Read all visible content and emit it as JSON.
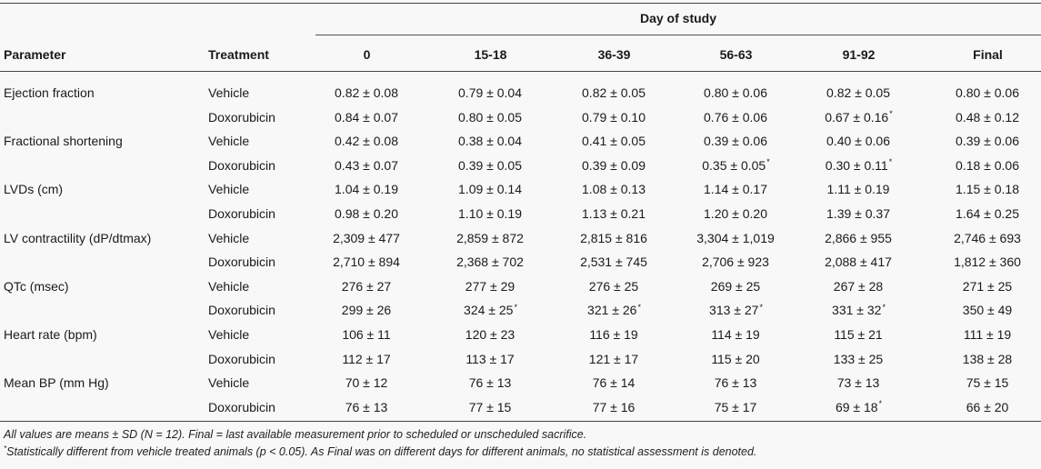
{
  "table": {
    "span_header": "Day of study",
    "col_headers": [
      "Parameter",
      "Treatment",
      "0",
      "15-18",
      "36-39",
      "56-63",
      "91-92",
      "Final"
    ],
    "rows": [
      {
        "parameter": "Ejection fraction",
        "treatment": "Vehicle",
        "values": [
          "0.82 ± 0.08",
          "0.79 ± 0.04",
          "0.82 ± 0.05",
          "0.80 ± 0.06",
          "0.82 ± 0.05",
          "0.80 ± 0.06"
        ],
        "stars": [
          "",
          "",
          "",
          "",
          "",
          ""
        ]
      },
      {
        "parameter": "",
        "treatment": "Doxorubicin",
        "values": [
          "0.84 ± 0.07",
          "0.80 ± 0.05",
          "0.79 ± 0.10",
          "0.76 ± 0.06",
          "0.67 ± 0.16",
          "0.48 ± 0.12"
        ],
        "stars": [
          "",
          "",
          "",
          "",
          "*",
          ""
        ]
      },
      {
        "parameter": "Fractional shortening",
        "treatment": "Vehicle",
        "values": [
          "0.42 ± 0.08",
          "0.38 ± 0.04",
          "0.41 ± 0.05",
          "0.39 ± 0.06",
          "0.40 ± 0.06",
          "0.39 ± 0.06"
        ],
        "stars": [
          "",
          "",
          "",
          "",
          "",
          ""
        ]
      },
      {
        "parameter": "",
        "treatment": "Doxorubicin",
        "values": [
          "0.43 ± 0.07",
          "0.39 ± 0.05",
          "0.39 ± 0.09",
          "0.35 ± 0.05",
          "0.30 ± 0.11",
          "0.18 ± 0.06"
        ],
        "stars": [
          "",
          "",
          "",
          "*",
          "*",
          ""
        ]
      },
      {
        "parameter": "LVDs (cm)",
        "treatment": "Vehicle",
        "values": [
          "1.04 ± 0.19",
          "1.09 ± 0.14",
          "1.08 ± 0.13",
          "1.14 ± 0.17",
          "1.11 ± 0.19",
          "1.15 ± 0.18"
        ],
        "stars": [
          "",
          "",
          "",
          "",
          "",
          ""
        ]
      },
      {
        "parameter": "",
        "treatment": "Doxorubicin",
        "values": [
          "0.98 ± 0.20",
          "1.10 ± 0.19",
          "1.13 ± 0.21",
          "1.20 ± 0.20",
          "1.39 ± 0.37",
          "1.64 ± 0.25"
        ],
        "stars": [
          "",
          "",
          "",
          "",
          "",
          ""
        ]
      },
      {
        "parameter": "LV contractility (dP/dtmax)",
        "treatment": "Vehicle",
        "values": [
          "2,309 ± 477",
          "2,859 ± 872",
          "2,815 ± 816",
          "3,304 ± 1,019",
          "2,866 ± 955",
          "2,746 ± 693"
        ],
        "stars": [
          "",
          "",
          "",
          "",
          "",
          ""
        ]
      },
      {
        "parameter": "",
        "treatment": "Doxorubicin",
        "values": [
          "2,710 ± 894",
          "2,368 ± 702",
          "2,531 ± 745",
          "2,706 ± 923",
          "2,088 ± 417",
          "1,812 ± 360"
        ],
        "stars": [
          "",
          "",
          "",
          "",
          "",
          ""
        ]
      },
      {
        "parameter": "QTc (msec)",
        "treatment": "Vehicle",
        "values": [
          "276 ± 27",
          "277 ± 29",
          "276 ± 25",
          "269 ± 25",
          "267 ± 28",
          "271 ± 25"
        ],
        "stars": [
          "",
          "",
          "",
          "",
          "",
          ""
        ]
      },
      {
        "parameter": "",
        "treatment": "Doxorubicin",
        "values": [
          "299 ± 26",
          "324 ± 25",
          "321 ± 26",
          "313 ± 27",
          "331 ± 32",
          "350 ± 49"
        ],
        "stars": [
          "",
          "*",
          "*",
          "*",
          "*",
          ""
        ]
      },
      {
        "parameter": "Heart rate (bpm)",
        "treatment": "Vehicle",
        "values": [
          "106 ± 11",
          "120 ± 23",
          "116 ± 19",
          "114 ± 19",
          "115 ± 21",
          "111 ± 19"
        ],
        "stars": [
          "",
          "",
          "",
          "",
          "",
          ""
        ]
      },
      {
        "parameter": "",
        "treatment": "Doxorubicin",
        "values": [
          "112 ± 17",
          "113 ± 17",
          "121 ± 17",
          "115 ± 20",
          "133 ± 25",
          "138 ± 28"
        ],
        "stars": [
          "",
          "",
          "",
          "",
          "",
          ""
        ]
      },
      {
        "parameter": "Mean BP (mm Hg)",
        "treatment": "Vehicle",
        "values": [
          "70 ± 12",
          "76 ± 13",
          "76 ± 14",
          "76 ± 13",
          "73 ± 13",
          "75 ± 15"
        ],
        "stars": [
          "",
          "",
          "",
          "",
          "",
          ""
        ]
      },
      {
        "parameter": "",
        "treatment": "Doxorubicin",
        "values": [
          "76 ± 13",
          "77 ± 15",
          "77 ± 16",
          "75 ± 17",
          "69 ± 18",
          "66 ± 20"
        ],
        "stars": [
          "",
          "",
          "",
          "",
          "*",
          ""
        ]
      }
    ]
  },
  "footnotes": {
    "note1": "All values are means ± SD (N = 12). Final = last available measurement prior to scheduled or unscheduled sacrifice.",
    "note2_marker": "*",
    "note2": "Statistically different from vehicle treated animals (p < 0.05). As Final was on different days for different animals, no statistical assessment is denoted."
  }
}
